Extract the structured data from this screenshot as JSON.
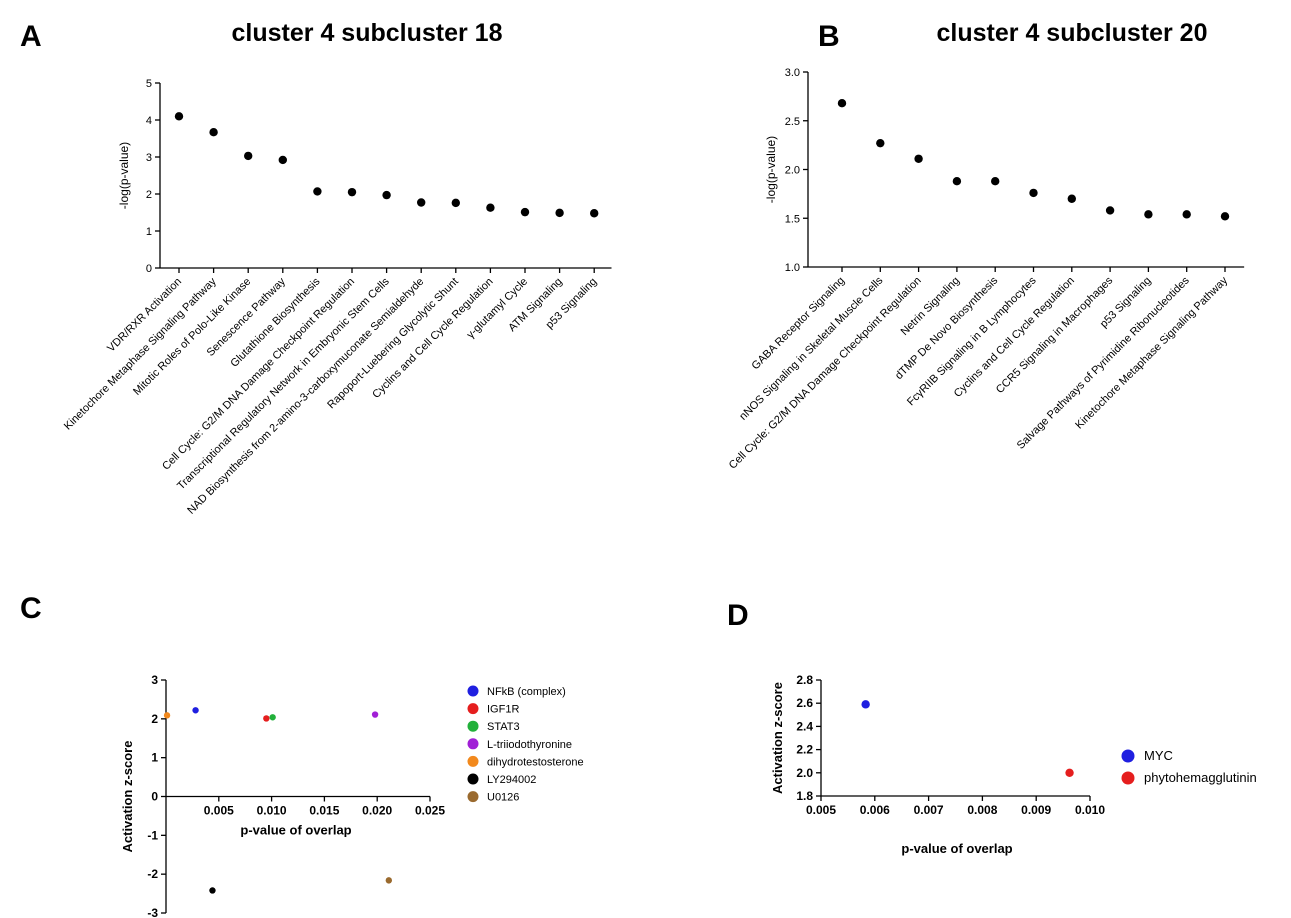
{
  "panels": {
    "A": "A",
    "B": "B",
    "C": "C",
    "D": "D"
  },
  "chart_data": [
    {
      "panel": "A",
      "type": "scatter",
      "title": "cluster 4 subcluster 18",
      "xlabel": "",
      "ylabel": "-log(p-value)",
      "ylim": [
        0,
        5
      ],
      "yticks": [
        "0",
        "1",
        "2",
        "3",
        "4",
        "5"
      ],
      "grid": false,
      "categories": [
        "VDR/RXR Activation",
        "Kinetochore Metaphase Signaling Pathway",
        "Mitotic Roles of Polo-Like Kinase",
        "Senescence Pathway",
        "Glutathione Biosynthesis",
        "Cell Cycle: G2/M DNA Damage Checkpoint Regulation",
        "Transcriptional Regulatory Network in Embryonic Stem Cells",
        "NAD Biosynthesis from 2-amino-3-carboxymuconate Semialdehyde",
        "Rapoport-Luebering Glycolytic Shunt",
        "Cyclins and Cell Cycle Regulation",
        "γ-glutamyl Cycle",
        "ATM Signaling",
        "p53 Signaling"
      ],
      "values": [
        4.1,
        3.67,
        3.03,
        2.92,
        2.07,
        2.05,
        1.97,
        1.77,
        1.76,
        1.63,
        1.51,
        1.49,
        1.48
      ]
    },
    {
      "panel": "B",
      "type": "scatter",
      "title": "cluster 4 subcluster 20",
      "xlabel": "",
      "ylabel": "-log(p-value)",
      "ylim": [
        1.0,
        3.0
      ],
      "yticks": [
        "1.0",
        "1.5",
        "2.0",
        "2.5",
        "3.0"
      ],
      "grid": false,
      "categories": [
        "GABA Receptor Signaling",
        "nNOS Signaling in Skeletal Muscle Cells",
        "Cell Cycle: G2/M DNA Damage Checkpoint Regulation",
        "Netrin Signaling",
        "dTMP De Novo Biosynthesis",
        "FcγRIIB Signaling in B Lymphocytes",
        "Cyclins and Cell Cycle Regulation",
        "CCR5 Signaling in Macrophages",
        "p53 Signaling",
        "Salvage Pathways of Pyrimidine Ribonucleotides",
        "Kinetochore Metaphase Signaling Pathway"
      ],
      "values": [
        2.68,
        2.27,
        2.11,
        1.88,
        1.88,
        1.76,
        1.7,
        1.58,
        1.54,
        1.54,
        1.52
      ]
    },
    {
      "panel": "C",
      "type": "scatter",
      "title": "",
      "xlabel": "p-value of overlap",
      "ylabel": "Activation z-score",
      "xlim": [
        0,
        0.025
      ],
      "ylim": [
        -3,
        3
      ],
      "xticks": [
        "0.005",
        "0.010",
        "0.015",
        "0.020",
        "0.025"
      ],
      "yticks": [
        "-3",
        "-2",
        "-1",
        "0",
        "1",
        "2",
        "3"
      ],
      "legend_position": "right",
      "grid": false,
      "series": [
        {
          "name": "NFkB (complex)",
          "color": "#1f1fe0",
          "x": 0.0028,
          "y": 2.22
        },
        {
          "name": "IGF1R",
          "color": "#e51e1e",
          "x": 0.0095,
          "y": 2.01
        },
        {
          "name": "STAT3",
          "color": "#22b03a",
          "x": 0.0101,
          "y": 2.04
        },
        {
          "name": "L-triiodothyronine",
          "color": "#a11fd6",
          "x": 0.0198,
          "y": 2.11
        },
        {
          "name": "dihydrotestosterone",
          "color": "#f2891d",
          "x": 0.0001,
          "y": 2.09
        },
        {
          "name": "LY294002",
          "color": "#000000",
          "x": 0.0044,
          "y": -2.42
        },
        {
          "name": "U0126",
          "color": "#9a6a2e",
          "x": 0.0211,
          "y": -2.16
        }
      ]
    },
    {
      "panel": "D",
      "type": "scatter",
      "title": "",
      "xlabel": "p-value of overlap",
      "ylabel": "Activation z-score",
      "xlim": [
        0.005,
        0.01
      ],
      "ylim": [
        1.8,
        2.8
      ],
      "xticks": [
        "0.005",
        "0.006",
        "0.007",
        "0.008",
        "0.009",
        "0.010"
      ],
      "yticks": [
        "1.8",
        "2.0",
        "2.2",
        "2.4",
        "2.6",
        "2.8"
      ],
      "legend_position": "right",
      "grid": false,
      "series": [
        {
          "name": "MYC",
          "color": "#1f1fe0",
          "x": 0.00583,
          "y": 2.59
        },
        {
          "name": "phytohemagglutinin",
          "color": "#e51e1e",
          "x": 0.00962,
          "y": 2.0
        }
      ]
    }
  ]
}
